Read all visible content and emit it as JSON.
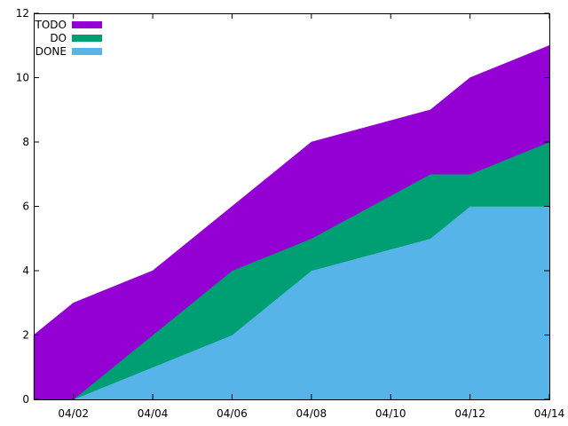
{
  "chart_data": {
    "type": "area",
    "stacked": true,
    "title": "",
    "xlabel": "",
    "ylabel": "",
    "x": [
      "04/01",
      "04/02",
      "04/04",
      "04/06",
      "04/08",
      "04/11",
      "04/12",
      "04/14"
    ],
    "x_ticks": [
      "04/02",
      "04/04",
      "04/06",
      "04/08",
      "04/10",
      "04/12",
      "04/14"
    ],
    "xlim": [
      "04/01",
      "04/14"
    ],
    "ylim": [
      0,
      12
    ],
    "y_ticks": [
      0,
      2,
      4,
      6,
      8,
      10,
      12
    ],
    "grid": false,
    "legend_placement": "top-left",
    "series": [
      {
        "name": "TODO",
        "color": "#9400d3",
        "values": [
          2,
          3,
          2,
          2,
          3,
          2,
          3,
          3
        ]
      },
      {
        "name": "DO",
        "color": "#009e73",
        "values": [
          0,
          0,
          1,
          2,
          1,
          2,
          1,
          2
        ]
      },
      {
        "name": "DONE",
        "color": "#56b4e9",
        "values": [
          0,
          0,
          1,
          2,
          4,
          5,
          6,
          6
        ]
      }
    ]
  }
}
